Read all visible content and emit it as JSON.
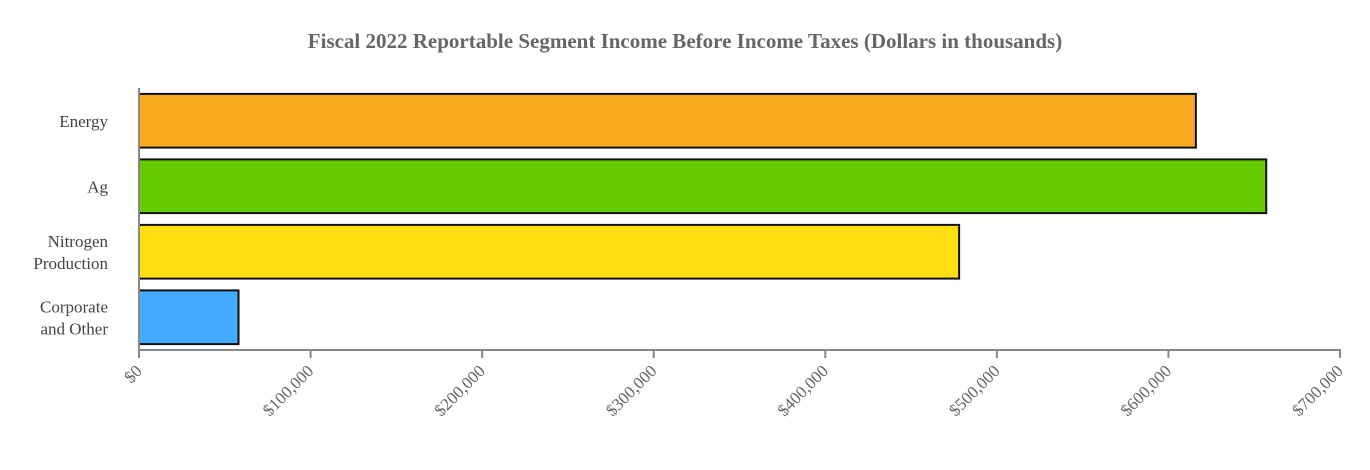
{
  "chart_data": {
    "type": "bar",
    "orientation": "horizontal",
    "title": "Fiscal 2022 Reportable Segment Income Before Income Taxes (Dollars in thousands)",
    "xlabel": "",
    "ylabel": "",
    "categories": [
      {
        "label": [
          "Energy"
        ],
        "value": 616000,
        "color": "#F7AA1D"
      },
      {
        "label": [
          "Ag"
        ],
        "value": 657000,
        "color": "#66CC00"
      },
      {
        "label": [
          "Nitrogen",
          "Production"
        ],
        "value": 478000,
        "color": "#FFDD11"
      },
      {
        "label": [
          "Corporate",
          "and Other"
        ],
        "value": 58000,
        "color": "#44AAFF"
      }
    ],
    "xlim": [
      0,
      700000
    ],
    "x_ticks": [
      {
        "value": 0,
        "label": "$0"
      },
      {
        "value": 100000,
        "label": "$100,000"
      },
      {
        "value": 200000,
        "label": "$200,000"
      },
      {
        "value": 300000,
        "label": "$300,000"
      },
      {
        "value": 400000,
        "label": "$400,000"
      },
      {
        "value": 500000,
        "label": "$500,000"
      },
      {
        "value": 600000,
        "label": "$600,000"
      },
      {
        "value": 700000,
        "label": "$700,000"
      }
    ],
    "grid": false,
    "legend": "none"
  }
}
